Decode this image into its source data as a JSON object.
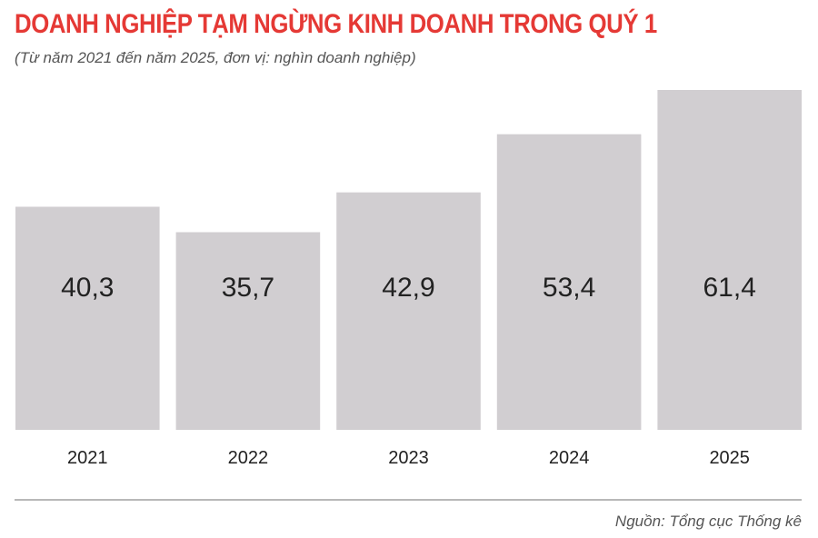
{
  "title": "DOANH NGHIỆP TẠM NGỪNG KINH DOANH TRONG QUÝ 1",
  "subtitle": "(Từ năm 2021 đến năm 2025, đơn vị: nghìn doanh nghiệp)",
  "source": "Nguồn: Tổng cục Thống kê",
  "chart_data": {
    "type": "bar",
    "title": "DOANH NGHIỆP TẠM NGỪNG KINH DOANH TRONG QUÝ 1",
    "subtitle": "(Từ năm 2021 đến năm 2025, đơn vị: nghìn doanh nghiệp)",
    "categories": [
      "2021",
      "2022",
      "2023",
      "2024",
      "2025"
    ],
    "values": [
      40.3,
      35.7,
      42.9,
      53.4,
      61.4
    ],
    "value_labels": [
      "40,3",
      "35,7",
      "42,9",
      "53,4",
      "61,4"
    ],
    "ylim": [
      0,
      61.4
    ],
    "grid": false,
    "legend": "none",
    "colors": {
      "bar": "#d1ced1",
      "title": "#e53935",
      "text": "#222222"
    }
  }
}
